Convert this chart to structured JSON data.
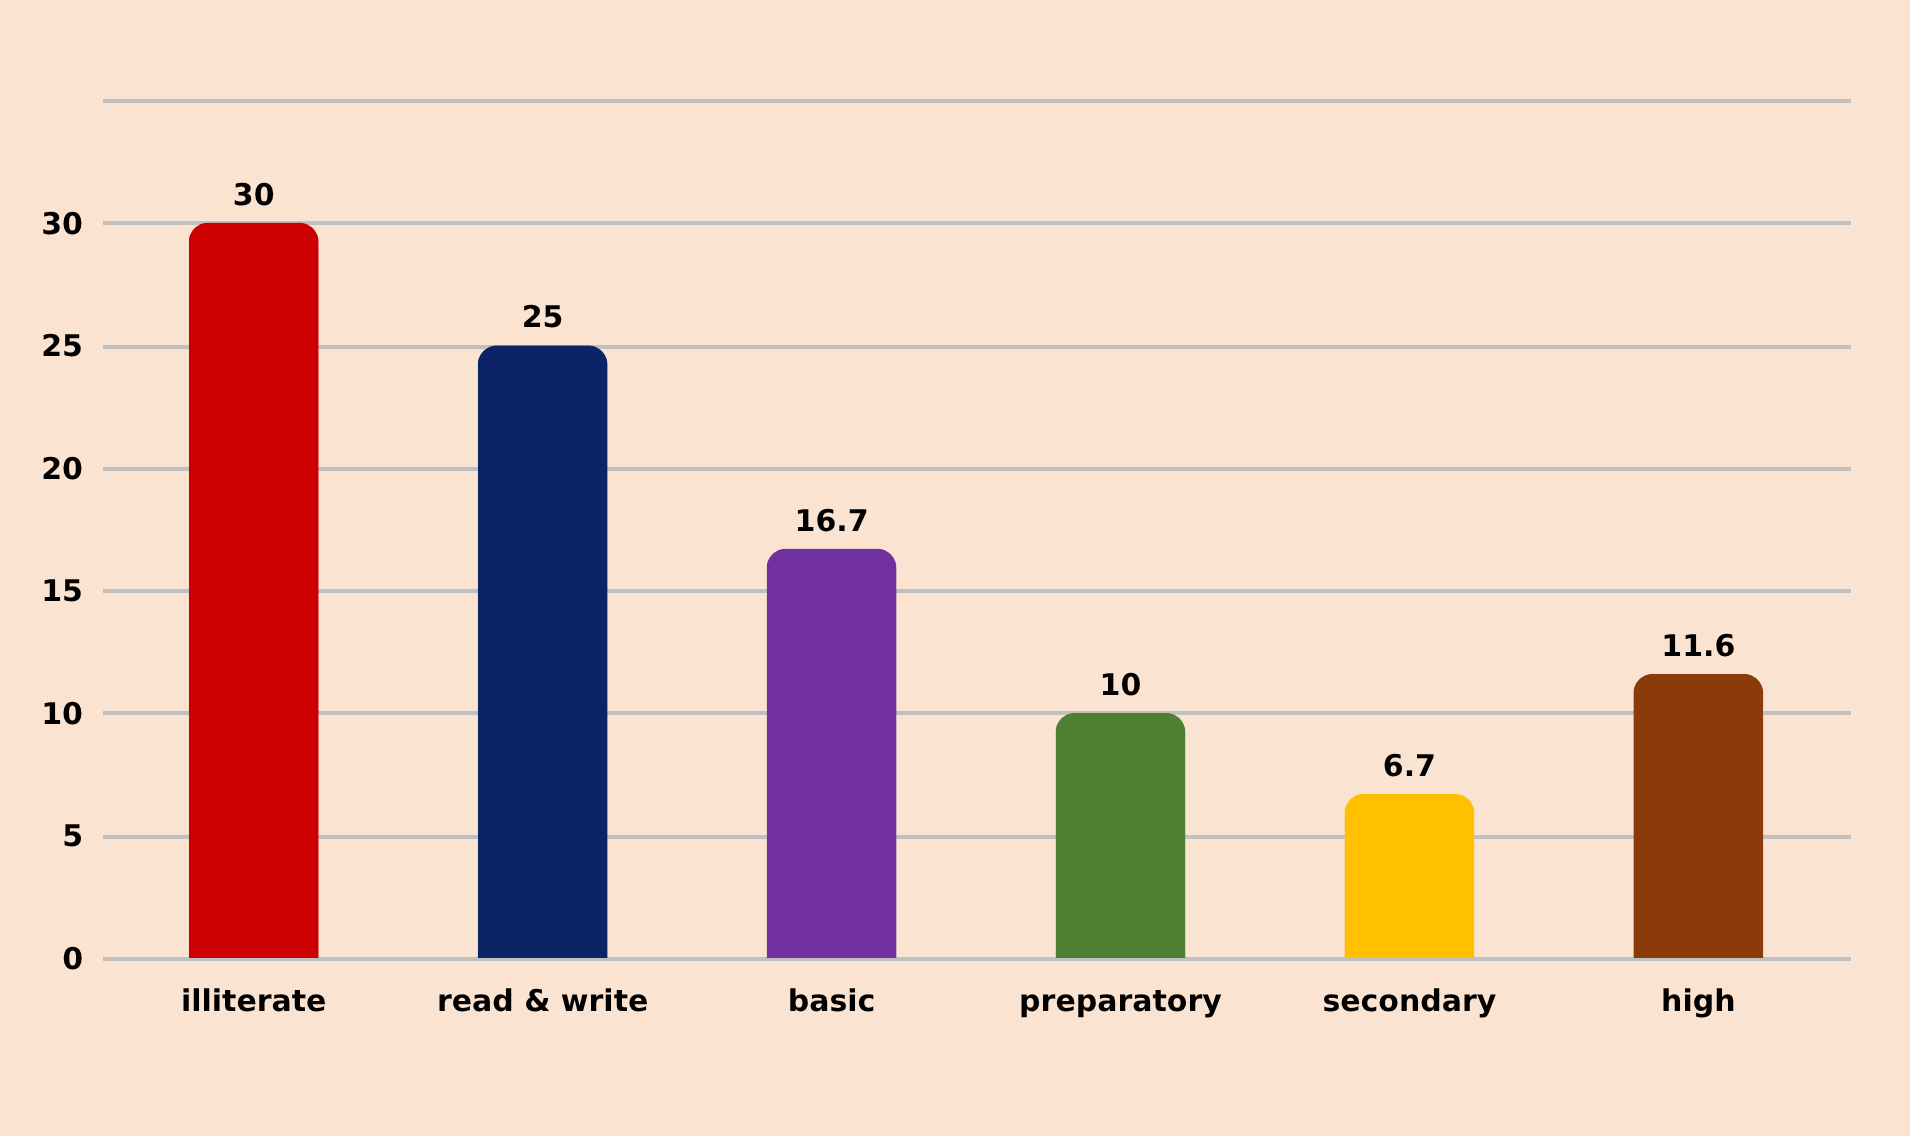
{
  "chart_data": {
    "type": "bar",
    "categories": [
      "illiterate",
      "read & write",
      "basic",
      "preparatory",
      "secondary",
      "high"
    ],
    "values": [
      30,
      25,
      16.7,
      10,
      6.7,
      11.6
    ],
    "colors": [
      "#cc0000",
      "#0b2466",
      "#7030a0",
      "#4f7f30",
      "#ffc000",
      "#8b3a0a"
    ],
    "ylim": [
      0,
      35
    ],
    "yticks": [
      0,
      5,
      10,
      15,
      20,
      25,
      30,
      {
        "value": 35,
        "label": null
      }
    ],
    "grid": "y",
    "data_labels": true
  }
}
